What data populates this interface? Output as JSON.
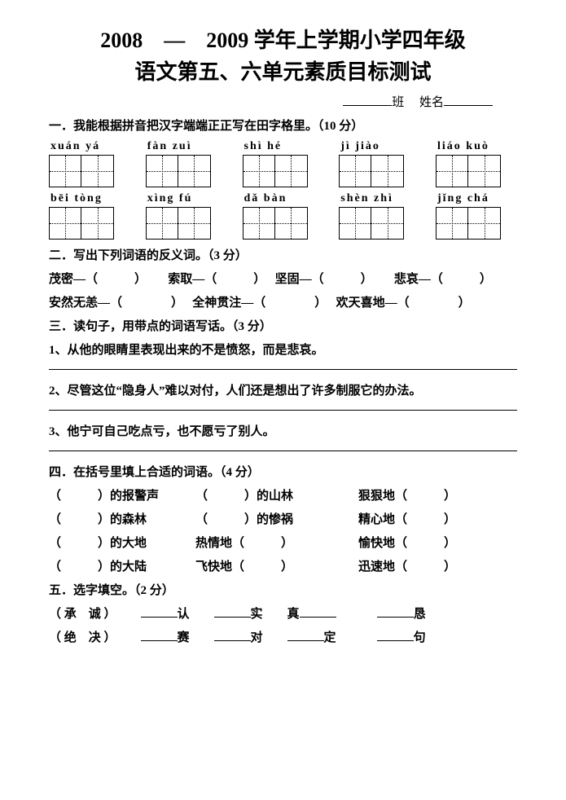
{
  "title_line1": "2008　—　2009 学年上学期小学四年级",
  "title_line2": "语文第五、六单元素质目标测试",
  "class_label": "班",
  "name_label": "姓名",
  "sec1": {
    "head": "一．我能根据拼音把汉字端端正正写在田字格里。（10 分）",
    "row1": [
      "xuán yá",
      "fàn zuì",
      "shì hé",
      "jì jiào",
      "liáo kuò"
    ],
    "row2": [
      "bēi tòng",
      "xìng fú",
      "dǎ bàn",
      "shèn zhì",
      "jǐng chá"
    ]
  },
  "sec2": {
    "head": "二．写出下列词语的反义词。（3 分）",
    "line1_a": "茂密—（　　　）",
    "line1_b": "索取—（　　　）",
    "line1_c": "坚固—（　　　）",
    "line1_d": "悲哀—（　　　）",
    "line2_a": "安然无恙—（　　　　）",
    "line2_b": "全神贯注—（　　　　）",
    "line2_c": "欢天喜地—（　　　　）"
  },
  "sec3": {
    "head": "三．读句子，用带点的词语写话。（3 分）",
    "q1": "1、从他的眼睛里表现出来的不是愤怒，而是悲哀。",
    "q2": "2、尽管这位“隐身人”难以对付，人们还是想出了许多制服它的办法。",
    "q3": "3、他宁可自己吃点亏，也不愿亏了别人。"
  },
  "sec4": {
    "head": "四．在括号里填上合适的词语。（4 分）",
    "rows": [
      {
        "a": "（　　　）的报警声",
        "b": "（　　　）的山林",
        "c": "狠狠地（　　　）"
      },
      {
        "a": "（　　　）的森林",
        "b": "（　　　）的惨祸",
        "c": "精心地（　　　）"
      },
      {
        "a": "（　　　）的大地",
        "b": "热情地（　　　）",
        "c": "愉快地（　　　）"
      },
      {
        "a": "（　　　）的大陆",
        "b": "飞快地（　　　）",
        "c": "迅速地（　　　）"
      }
    ]
  },
  "sec5": {
    "head": "五．选字填空。（2 分）",
    "row1_chars": "（ 承　诚 ）",
    "row1_words": [
      "认",
      "实",
      "真",
      "恳"
    ],
    "row2_chars": "（ 绝　决 ）",
    "row2_words": [
      "赛",
      "对",
      "定",
      "句"
    ]
  },
  "colors": {
    "text": "#000000",
    "bg": "#ffffff"
  }
}
